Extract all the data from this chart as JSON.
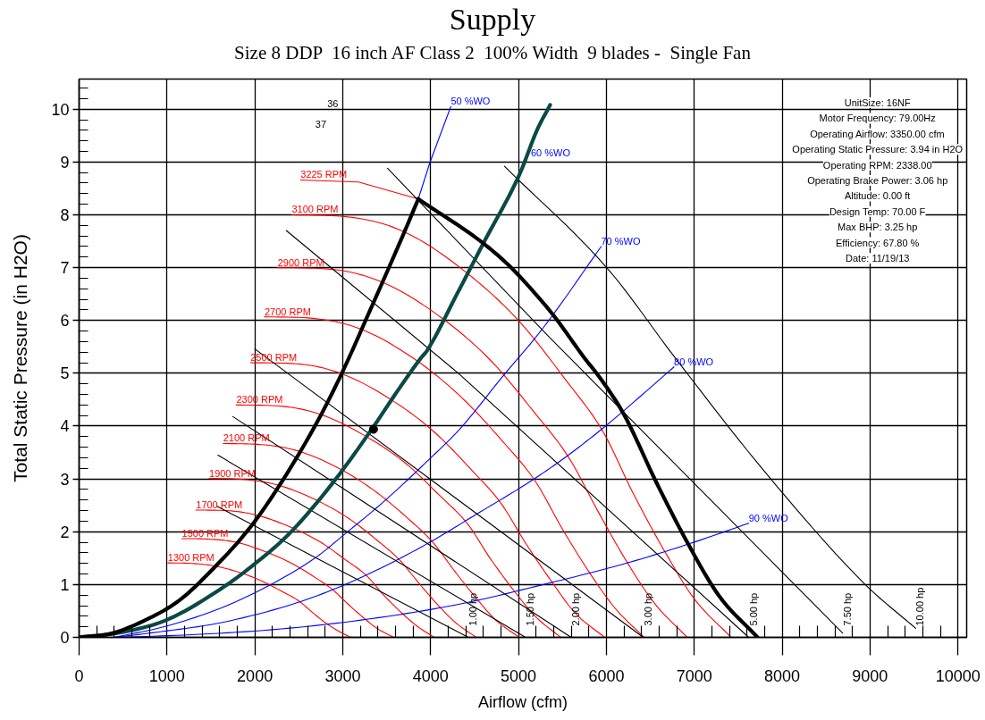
{
  "chart_data": {
    "type": "line",
    "title": "Supply",
    "subtitle": "Size 8 DDP  16 inch AF Class 2  100% Width  9 blades -  Single Fan",
    "xlabel": "Airflow (cfm)",
    "ylabel": "Total Static Pressure (in H2O)",
    "xlim": [
      0,
      10100
    ],
    "ylim": [
      0,
      10.57
    ],
    "xticks": [
      0,
      {
        "value": 200,
        "label": null
      },
      {
        "value": 400,
        "label": null
      },
      {
        "value": 600,
        "label": null
      },
      {
        "value": 800,
        "label": null
      },
      1000,
      {
        "value": 1200,
        "label": null
      },
      {
        "value": 1400,
        "label": null
      },
      {
        "value": 1600,
        "label": null
      },
      {
        "value": 1800,
        "label": null
      },
      2000,
      {
        "value": 2200,
        "label": null
      },
      {
        "value": 2400,
        "label": null
      },
      {
        "value": 2600,
        "label": null
      },
      {
        "value": 2800,
        "label": null
      },
      3000,
      {
        "value": 3200,
        "label": null
      },
      {
        "value": 3400,
        "label": null
      },
      {
        "value": 3600,
        "label": null
      },
      {
        "value": 3800,
        "label": null
      },
      4000,
      {
        "value": 4200,
        "label": null
      },
      {
        "value": 4400,
        "label": null
      },
      {
        "value": 4600,
        "label": null
      },
      {
        "value": 4800,
        "label": null
      },
      5000,
      {
        "value": 5200,
        "label": null
      },
      {
        "value": 5400,
        "label": null
      },
      {
        "value": 5600,
        "label": null
      },
      {
        "value": 5800,
        "label": null
      },
      6000,
      {
        "value": 6200,
        "label": null
      },
      {
        "value": 6400,
        "label": null
      },
      {
        "value": 6600,
        "label": null
      },
      {
        "value": 6800,
        "label": null
      },
      7000,
      {
        "value": 7200,
        "label": null
      },
      {
        "value": 7400,
        "label": null
      },
      {
        "value": 7600,
        "label": null
      },
      {
        "value": 7800,
        "label": null
      },
      8000,
      {
        "value": 8200,
        "label": null
      },
      {
        "value": 8400,
        "label": null
      },
      {
        "value": 8600,
        "label": null
      },
      {
        "value": 8800,
        "label": null
      },
      9000,
      {
        "value": 9200,
        "label": null
      },
      {
        "value": 9400,
        "label": null
      },
      {
        "value": 9600,
        "label": null
      },
      {
        "value": 9800,
        "label": null
      },
      10000
    ],
    "yticks": [
      0,
      {
        "value": 0.2,
        "label": null
      },
      {
        "value": 0.4,
        "label": null
      },
      {
        "value": 0.6,
        "label": null
      },
      {
        "value": 0.8,
        "label": null
      },
      1,
      {
        "value": 1.2,
        "label": null
      },
      {
        "value": 1.4,
        "label": null
      },
      {
        "value": 1.6,
        "label": null
      },
      {
        "value": 1.8,
        "label": null
      },
      2,
      {
        "value": 2.2,
        "label": null
      },
      {
        "value": 2.4,
        "label": null
      },
      {
        "value": 2.6,
        "label": null
      },
      {
        "value": 2.8,
        "label": null
      },
      3,
      {
        "value": 3.2,
        "label": null
      },
      {
        "value": 3.4,
        "label": null
      },
      {
        "value": 3.6,
        "label": null
      },
      {
        "value": 3.8,
        "label": null
      },
      4,
      {
        "value": 4.2,
        "label": null
      },
      {
        "value": 4.4,
        "label": null
      },
      {
        "value": 4.6,
        "label": null
      },
      {
        "value": 4.8,
        "label": null
      },
      5,
      {
        "value": 5.2,
        "label": null
      },
      {
        "value": 5.4,
        "label": null
      },
      {
        "value": 5.6,
        "label": null
      },
      {
        "value": 5.8,
        "label": null
      },
      6,
      {
        "value": 6.2,
        "label": null
      },
      {
        "value": 6.4,
        "label": null
      },
      {
        "value": 6.6,
        "label": null
      },
      {
        "value": 6.8,
        "label": null
      },
      7,
      {
        "value": 7.2,
        "label": null
      },
      {
        "value": 7.4,
        "label": null
      },
      {
        "value": 7.6,
        "label": null
      },
      {
        "value": 7.8,
        "label": null
      },
      8,
      {
        "value": 8.2,
        "label": null
      },
      {
        "value": 8.4,
        "label": null
      },
      {
        "value": 8.6,
        "label": null
      },
      {
        "value": 8.8,
        "label": null
      },
      9,
      {
        "value": 9.2,
        "label": null
      },
      {
        "value": 9.4,
        "label": null
      },
      {
        "value": 9.6,
        "label": null
      },
      {
        "value": 9.8,
        "label": null
      },
      10,
      {
        "value": 10.2,
        "label": null
      },
      {
        "value": 10.4,
        "label": null
      }
    ],
    "grid": true,
    "series": [
      {
        "name": "1300 RPM",
        "color": "#ff0000",
        "x": [
          1010,
          1280,
          1550,
          1860,
          2100,
          2320,
          2500,
          2650,
          2800,
          2940,
          3090
        ],
        "values": [
          1.41,
          1.4,
          1.35,
          1.21,
          1.05,
          0.86,
          0.69,
          0.48,
          0.28,
          0.13,
          0
        ]
      },
      {
        "name": "1500 RPM",
        "color": "#ff0000",
        "x": [
          1170,
          1480,
          1790,
          2140,
          2420,
          2680,
          2880,
          3060,
          3230,
          3390,
          3580
        ],
        "values": [
          1.87,
          1.86,
          1.8,
          1.61,
          1.4,
          1.14,
          0.91,
          0.63,
          0.38,
          0.17,
          0
        ]
      },
      {
        "name": "1700 RPM",
        "color": "#ff0000",
        "x": [
          1330,
          1680,
          2030,
          2430,
          2750,
          3030,
          3270,
          3460,
          3660,
          3840,
          4040
        ],
        "values": [
          2.41,
          2.4,
          2.31,
          2.07,
          1.8,
          1.47,
          1.17,
          0.81,
          0.48,
          0.22,
          0
        ]
      },
      {
        "name": "1900 RPM",
        "color": "#ff0000",
        "x": [
          1480,
          1870,
          2270,
          2710,
          3070,
          3390,
          3650,
          3870,
          4090,
          4290,
          4520
        ],
        "values": [
          3.01,
          2.99,
          2.88,
          2.59,
          2.25,
          1.84,
          1.46,
          1.02,
          0.6,
          0.27,
          0
        ]
      },
      {
        "name": "2100 RPM",
        "color": "#ff0000",
        "x": [
          1640,
          2070,
          2510,
          3000,
          3390,
          3750,
          4030,
          4280,
          4520,
          4740,
          5010
        ],
        "values": [
          3.67,
          3.65,
          3.52,
          3.16,
          2.74,
          2.24,
          1.79,
          1.24,
          0.74,
          0.33,
          0
        ]
      },
      {
        "name": "2300 RPM",
        "color": "#ff0000",
        "x": [
          1790,
          2270,
          2750,
          3280,
          3720,
          4100,
          4420,
          4680,
          4950,
          5190,
          5480
        ],
        "values": [
          4.4,
          4.38,
          4.22,
          3.79,
          3.29,
          2.69,
          2.15,
          1.49,
          0.88,
          0.4,
          0
        ]
      },
      {
        "name": "2500 RPM",
        "color": "#ff0000",
        "x": [
          1950,
          2470,
          2990,
          3570,
          4040,
          4460,
          4800,
          5090,
          5380,
          5640,
          5980
        ],
        "values": [
          5.2,
          5.18,
          4.99,
          4.48,
          3.89,
          3.18,
          2.54,
          1.76,
          1.05,
          0.47,
          0
        ]
      },
      {
        "name": "2700 RPM",
        "color": "#ff0000",
        "x": [
          2110,
          2660,
          3230,
          3850,
          4360,
          4820,
          5190,
          5500,
          5810,
          6100,
          6430
        ],
        "values": [
          6.07,
          6.04,
          5.82,
          5.23,
          4.53,
          3.71,
          2.96,
          2.05,
          1.22,
          0.55,
          0
        ]
      },
      {
        "name": "2900 RPM",
        "color": "#ff0000",
        "x": [
          2260,
          2860,
          3470,
          4140,
          4690,
          5170,
          5570,
          5910,
          6240,
          6550,
          6920
        ],
        "values": [
          7.0,
          6.97,
          6.71,
          6.03,
          5.23,
          4.28,
          3.41,
          2.37,
          1.41,
          0.64,
          0
        ]
      },
      {
        "name": "3100 RPM",
        "color": "#ff0000",
        "x": [
          2420,
          3060,
          3710,
          4420,
          5010,
          5530,
          5960,
          6310,
          6670,
          7000,
          7420
        ],
        "values": [
          8.0,
          7.96,
          7.67,
          6.89,
          5.98,
          4.89,
          3.9,
          2.71,
          1.61,
          0.73,
          0
        ]
      },
      {
        "name": "3225 RPM",
        "color": "#ff0000",
        "x": [
          2520,
          3180,
          3860
        ],
        "values": [
          8.66,
          8.62,
          8.3
        ]
      },
      {
        "name": "50 %WO",
        "color": "#0000ff",
        "x": [
          3860,
          3990,
          4230
        ],
        "values": [
          8.3,
          8.98,
          10.05
        ]
      },
      {
        "name": "70 %WO",
        "color": "#0000ff",
        "x": [
          400,
          1010,
          1620,
          2160,
          2700,
          2990,
          3480,
          3990,
          4330,
          4840,
          5210,
          5420,
          5940
        ],
        "values": [
          0,
          0.22,
          0.56,
          0.98,
          1.52,
          1.91,
          2.59,
          3.38,
          3.94,
          4.98,
          5.71,
          6.17,
          7.4
        ]
      },
      {
        "name": "80 %WO",
        "color": "#0000ff",
        "x": [
          400,
          940,
          1620,
          2470,
          2970,
          3480,
          3990,
          4500,
          5160,
          5550,
          5990,
          6770
        ],
        "values": [
          0,
          0.11,
          0.28,
          0.65,
          0.96,
          1.35,
          1.8,
          2.31,
          2.98,
          3.43,
          4.0,
          5.12
        ]
      },
      {
        "name": "90 %WO",
        "color": "#0000ff",
        "x": [
          400,
          1280,
          2300,
          3310,
          4330,
          5210,
          6260,
          6940,
          7620
        ],
        "values": [
          0,
          0.05,
          0.16,
          0.35,
          0.63,
          0.97,
          1.42,
          1.77,
          2.16
        ]
      },
      {
        "name": "1.00 hp",
        "color": "#000000",
        "x": [
          1570,
          4430
        ],
        "values": [
          2.48,
          0
        ]
      },
      {
        "name": "1.50 hp",
        "color": "#000000",
        "x": [
          1580,
          5080
        ],
        "values": [
          3.45,
          0
        ]
      },
      {
        "name": "2.00 hp",
        "color": "#000000",
        "x": [
          1750,
          5600
        ],
        "values": [
          4.18,
          0
        ]
      },
      {
        "name": "3.00 hp",
        "color": "#000000",
        "x": [
          2000,
          6420
        ],
        "values": [
          5.46,
          0
        ]
      },
      {
        "name": "5.00 hp",
        "color": "#000000",
        "x": [
          2360,
          4330,
          7620
        ],
        "values": [
          7.7,
          4.98,
          0
        ]
      },
      {
        "name": "7.50 hp",
        "color": "#000000",
        "x": [
          3510,
          5340,
          8690
        ],
        "values": [
          8.88,
          5.7,
          0.08
        ]
      },
      {
        "name": "10.00 hp",
        "color": "#000000",
        "x": [
          4840,
          6030,
          6770,
          7820,
          8940,
          9520
        ],
        "values": [
          8.92,
          6.95,
          5.32,
          3.1,
          1.01,
          0.17
        ]
      },
      {
        "color": "#0b4945",
        "x": [
          0,
          530,
          1010,
          1650,
          1990,
          2360,
          2670,
          2990,
          3330,
          3650,
          3890,
          3960,
          4300,
          4600,
          5010,
          5210,
          5360
        ],
        "values": [
          0,
          0.11,
          0.34,
          0.96,
          1.38,
          1.91,
          2.48,
          3.15,
          3.94,
          4.73,
          5.29,
          5.43,
          6.5,
          7.46,
          8.76,
          9.6,
          10.08
        ]
      },
      {
        "color": "#000000",
        "x": [
          0,
          360,
          770,
          1140,
          1520,
          1960,
          2300,
          2700,
          2990,
          3260,
          3690,
          3860
        ],
        "values": [
          0,
          0.07,
          0.34,
          0.7,
          1.29,
          2.11,
          2.93,
          4.05,
          5.0,
          6.0,
          7.63,
          8.3
        ]
      },
      {
        "color": "#000000",
        "x": [
          3860,
          4600,
          4910,
          5210,
          5420,
          5750,
          5920,
          6200,
          6570,
          6940,
          7280,
          7720
        ],
        "values": [
          8.3,
          7.46,
          7.01,
          6.47,
          6.05,
          5.29,
          4.93,
          4.22,
          2.93,
          1.74,
          0.79,
          0
        ]
      },
      {
        "type": "scatter",
        "marker": "circle",
        "color": "#000000",
        "x": [
          3350
        ],
        "values": [
          3.94
        ]
      }
    ],
    "annotations": [
      "UnitSize: 16NF",
      "Motor Frequency: 79.00Hz",
      "Operating Airflow: 3350.00 cfm",
      "Operating Static Pressure: 3.94 in H2O",
      "Operating RPM: 2338.00",
      "Operating Brake Power: 3.06 hp",
      "Altitude: 0.00 ft",
      "Design Temp: 70.00 F",
      "Max BHP: 3.25 hp",
      "Efficiency: 67.80 %",
      "Date: 11/19/13",
      "36",
      "37",
      {
        "text": "60 %WO",
        "x": 5090,
        "y": 9.08
      }
    ]
  }
}
